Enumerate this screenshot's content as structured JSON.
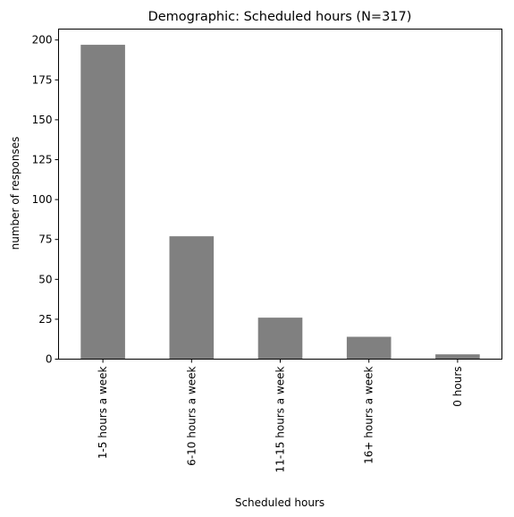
{
  "chart_data": {
    "type": "bar",
    "title": "Demographic: Scheduled hours (N=317)",
    "xlabel": "Scheduled hours",
    "ylabel": "number of responses",
    "categories": [
      "1-5 hours a week",
      "6-10 hours a week",
      "11-15 hours a week",
      "16+ hours a week",
      "0 hours"
    ],
    "values": [
      197,
      77,
      26,
      14,
      3
    ],
    "ylim": [
      0,
      206.85
    ],
    "yticks": [
      0,
      25,
      50,
      75,
      100,
      125,
      150,
      175,
      200
    ],
    "grid": false,
    "legend": "none",
    "bar_color": "#808080",
    "x_tick_rotation": "vertical"
  }
}
